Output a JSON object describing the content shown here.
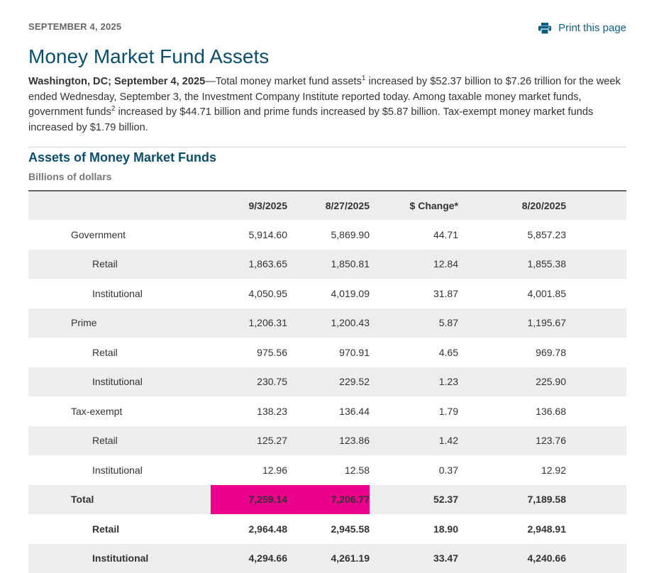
{
  "header": {
    "dateline": "SEPTEMBER 4, 2025",
    "print_label": "Print this page",
    "print_icon": "printer-icon"
  },
  "article": {
    "title": "Money Market Fund Assets",
    "lede": {
      "location": "Washington, DC; September 4, 2025",
      "part1": "—Total money market fund assets",
      "fn1": "1",
      "part2": " increased by $52.37 billion to $7.26 trillion for the week ended Wednesday, September 3, the Investment Company Institute reported today. Among taxable money market funds, government funds",
      "fn2": "2",
      "part3": " increased by $44.71 billion and prime funds increased by $5.87 billion. Tax-exempt money market funds increased by $1.79 billion."
    }
  },
  "section": {
    "title": "Assets of Money Market Funds",
    "subtitle": "Billions of dollars"
  },
  "table": {
    "headers": [
      "",
      "9/3/2025",
      "8/27/2025",
      "$ Change*",
      "8/20/2025",
      ""
    ],
    "rows": [
      {
        "label": "Government",
        "level": 1,
        "bold": false,
        "values": [
          "5,914.60",
          "5,869.90",
          "44.71",
          "5,857.23"
        ]
      },
      {
        "label": "Retail",
        "level": 2,
        "bold": false,
        "values": [
          "1,863.65",
          "1,850.81",
          "12.84",
          "1,855.38"
        ]
      },
      {
        "label": "Institutional",
        "level": 2,
        "bold": false,
        "values": [
          "4,050.95",
          "4,019.09",
          "31.87",
          "4,001.85"
        ]
      },
      {
        "label": "Prime",
        "level": 1,
        "bold": false,
        "values": [
          "1,206.31",
          "1,200.43",
          "5.87",
          "1,195.67"
        ]
      },
      {
        "label": "Retail",
        "level": 2,
        "bold": false,
        "values": [
          "975.56",
          "970.91",
          "4.65",
          "969.78"
        ]
      },
      {
        "label": "Institutional",
        "level": 2,
        "bold": false,
        "values": [
          "230.75",
          "229.52",
          "1.23",
          "225.90"
        ]
      },
      {
        "label": "Tax-exempt",
        "level": 1,
        "bold": false,
        "values": [
          "138.23",
          "136.44",
          "1.79",
          "136.68"
        ]
      },
      {
        "label": "Retail",
        "level": 2,
        "bold": false,
        "values": [
          "125.27",
          "123.86",
          "1.42",
          "123.76"
        ]
      },
      {
        "label": "Institutional",
        "level": 2,
        "bold": false,
        "values": [
          "12.96",
          "12.58",
          "0.37",
          "12.92"
        ]
      },
      {
        "label": "Total",
        "level": 1,
        "bold": true,
        "highlight": [
          0,
          1
        ],
        "values": [
          "7,259.14",
          "7,206.77",
          "52.37",
          "7,189.58"
        ]
      },
      {
        "label": "Retail",
        "level": 2,
        "bold": true,
        "values": [
          "2,964.48",
          "2,945.58",
          "18.90",
          "2,948.91"
        ]
      },
      {
        "label": "Institutional",
        "level": 2,
        "bold": true,
        "values": [
          "4,294.66",
          "4,261.19",
          "33.47",
          "4,240.66"
        ]
      }
    ],
    "highlight_color": "#ec008c"
  },
  "colors": {
    "title": "#0b4f6f",
    "link": "#0b5f86",
    "stripe": "#ededed"
  }
}
